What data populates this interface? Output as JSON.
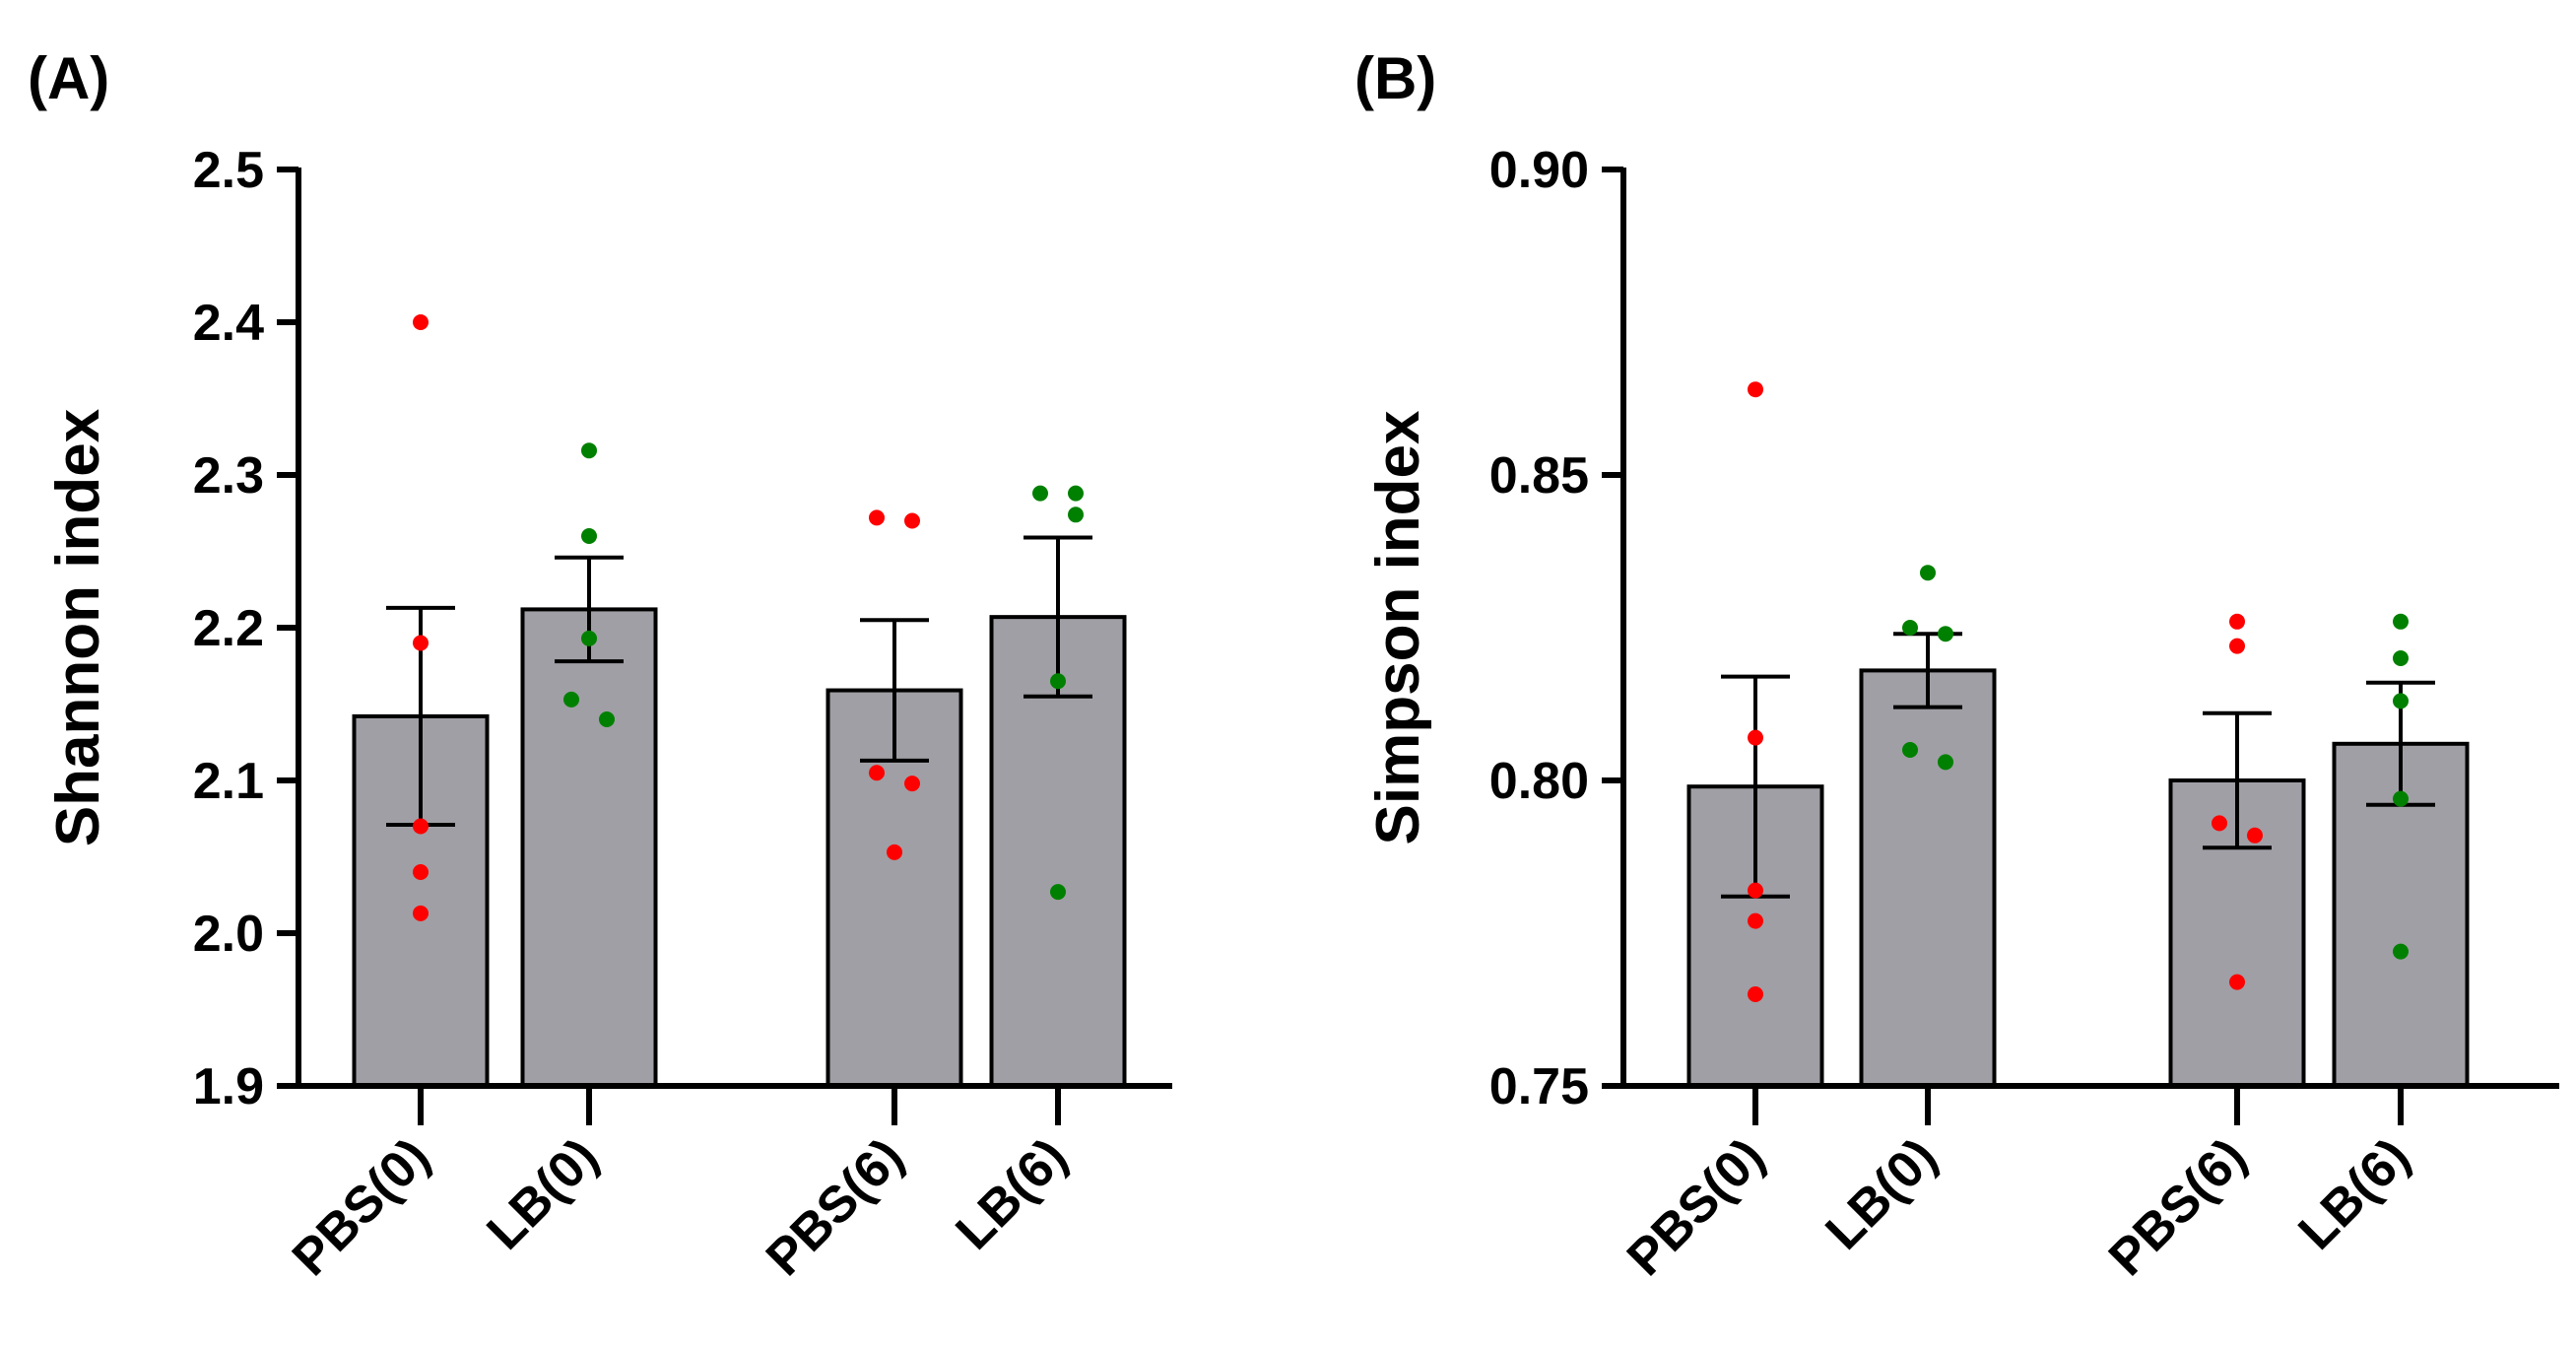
{
  "chart_data": [
    {
      "panel": "(A)",
      "type": "bar",
      "ylabel": "Shannon index",
      "ylim": [
        1.9,
        2.5
      ],
      "yticks": [
        "1.9",
        "2.0",
        "2.1",
        "2.2",
        "2.3",
        "2.4",
        "2.5"
      ],
      "categories": [
        "PBS(0)",
        "LB(0)",
        "PBS(6)",
        "LB(6)"
      ],
      "values": [
        2.142,
        2.212,
        2.159,
        2.207
      ],
      "errors": [
        0.071,
        0.034,
        0.046,
        0.052
      ],
      "points": [
        [
          2.4,
          2.19,
          2.07,
          2.04,
          2.013
        ],
        [
          2.316,
          2.26,
          2.193,
          2.153,
          2.14
        ],
        [
          2.272,
          2.27,
          2.105,
          2.098,
          2.053
        ],
        [
          2.288,
          2.288,
          2.274,
          2.165,
          2.027
        ]
      ],
      "point_colors": [
        "#ff0000",
        "#008000",
        "#ff0000",
        "#008000"
      ],
      "bar_color": "#a09fa5"
    },
    {
      "panel": "(B)",
      "type": "bar",
      "ylabel": "Simpson index",
      "ylim": [
        0.75,
        0.9
      ],
      "yticks": [
        "0.75",
        "0.80",
        "0.85",
        "0.90"
      ],
      "categories": [
        "PBS(0)",
        "LB(0)",
        "PBS(6)",
        "LB(6)"
      ],
      "values": [
        0.799,
        0.818,
        0.8,
        0.806
      ],
      "errors": [
        0.018,
        0.006,
        0.011,
        0.01
      ],
      "points": [
        [
          0.864,
          0.807,
          0.782,
          0.777,
          0.765
        ],
        [
          0.834,
          0.825,
          0.824,
          0.805,
          0.803
        ],
        [
          0.826,
          0.822,
          0.793,
          0.791,
          0.767
        ],
        [
          0.826,
          0.82,
          0.813,
          0.797,
          0.772
        ]
      ],
      "point_colors": [
        "#ff0000",
        "#008000",
        "#ff0000",
        "#008000"
      ],
      "bar_color": "#a09fa5"
    }
  ]
}
